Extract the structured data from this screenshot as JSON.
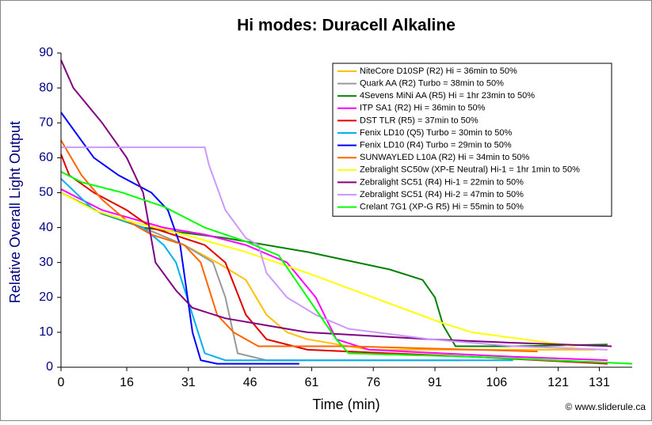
{
  "chart_data": {
    "type": "line",
    "title": "Hi modes: Duracell Alkaline",
    "x_label": "Time (min)",
    "y_label": "Relative Overall Light Output",
    "footer": "© www.sliderule.ca",
    "xlim": [
      0,
      139
    ],
    "ylim": [
      0,
      90
    ],
    "xticks": [
      0,
      16,
      31,
      46,
      61,
      76,
      91,
      106,
      121,
      131
    ],
    "yticks": [
      0,
      10,
      20,
      30,
      40,
      50,
      60,
      70,
      80,
      90
    ],
    "legend": "top-right",
    "series": [
      {
        "name": "NiteCore D10SP (R2) Hi = 36min to 50%",
        "color": "#ffc000",
        "x": [
          0,
          10,
          20,
          30,
          38,
          45,
          50,
          55,
          60,
          75,
          100,
          130
        ],
        "values": [
          50,
          44,
          40,
          35,
          30,
          25,
          15,
          10,
          8,
          5,
          5,
          5
        ]
      },
      {
        "name": "Quark AA (R2) Turbo = 38min to 50%",
        "color": "#999999",
        "x": [
          0,
          10,
          20,
          30,
          37,
          40,
          43,
          50,
          70,
          97
        ],
        "values": [
          50,
          44,
          40,
          35,
          30,
          20,
          4,
          2,
          2,
          2
        ]
      },
      {
        "name": "4Sevens MiNi AA (R5) Hi = 1hr 23min to 50%",
        "color": "#008000",
        "x": [
          0,
          10,
          20,
          40,
          60,
          80,
          88,
          91,
          93,
          96,
          110,
          133
        ],
        "values": [
          50,
          44,
          40,
          37,
          33,
          28,
          25,
          20,
          12,
          6,
          6,
          6.5
        ]
      },
      {
        "name": "ITP SA1 (R2) Hi = 36min to 50%",
        "color": "#ff00ff",
        "x": [
          0,
          10,
          25,
          35,
          45,
          55,
          62,
          67,
          75,
          110,
          133
        ],
        "values": [
          51,
          45,
          40,
          38,
          35,
          30,
          20,
          8,
          5,
          3,
          2
        ]
      },
      {
        "name": "DST TLR (R5) = 37min to 50%",
        "color": "#e00000",
        "x": [
          0,
          2,
          8,
          16,
          22,
          35,
          40,
          45,
          50,
          60,
          100,
          133
        ],
        "values": [
          61,
          55,
          50,
          45,
          40,
          35,
          30,
          15,
          8,
          5,
          3,
          1
        ]
      },
      {
        "name": "Fenix LD10 (Q5) Turbo = 30min to 50%",
        "color": "#00b0f0",
        "x": [
          0,
          8,
          20,
          25,
          28,
          32,
          35,
          40,
          110
        ],
        "values": [
          54,
          45,
          40,
          35,
          30,
          15,
          4,
          2,
          2
        ]
      },
      {
        "name": "Fenix LD10 (R4) Turbo = 29min to 50%",
        "color": "#0000ff",
        "x": [
          0,
          8,
          14,
          22,
          26,
          29,
          32,
          34,
          38,
          58
        ],
        "values": [
          73,
          60,
          55,
          50,
          45,
          35,
          10,
          2,
          1,
          1
        ]
      },
      {
        "name": "SUNWAYLED L10A (R2) Hi = 34min to 50%",
        "color": "#ff6600",
        "x": [
          0,
          5,
          10,
          16,
          22,
          30,
          34,
          38,
          42,
          48,
          70,
          116
        ],
        "values": [
          65,
          55,
          48,
          42,
          38,
          35,
          30,
          15,
          10,
          6,
          6,
          4.5
        ]
      },
      {
        "name": "Zebralight SC50w (XP-E Neutral) Hi-1 = 1hr 1min to 50%",
        "color": "#ffff00",
        "x": [
          0,
          8,
          16,
          30,
          45,
          60,
          76,
          92,
          100,
          125
        ],
        "values": [
          50,
          45,
          42,
          38,
          33,
          27,
          20,
          13,
          10,
          6
        ]
      },
      {
        "name": "Zebralight SC51 (R4) Hi-1 = 22min to 50%",
        "color": "#800080",
        "x": [
          0,
          3,
          10,
          16,
          20,
          23,
          28,
          32,
          40,
          50,
          60,
          90,
          110,
          134
        ],
        "values": [
          88,
          80,
          70,
          60,
          50,
          30,
          22,
          17,
          14,
          12,
          10,
          8,
          7,
          6
        ]
      },
      {
        "name": "Zebralight SC51 (R4) Hi-2 = 47min to 50%",
        "color": "#cc99ff",
        "x": [
          0,
          35,
          36,
          40,
          45,
          48,
          50,
          55,
          62,
          70,
          90,
          110,
          133
        ],
        "values": [
          63,
          63,
          58,
          45,
          37,
          35,
          27,
          20,
          15,
          11,
          8,
          6,
          5
        ]
      },
      {
        "name": "Crelant 7G1 (XP-G R5) Hi = 55min to 50%",
        "color": "#00ff00",
        "x": [
          0,
          5,
          15,
          20,
          25,
          35,
          45,
          53,
          60,
          67,
          70,
          100,
          120,
          139
        ],
        "values": [
          56,
          53,
          50,
          48,
          46,
          40,
          36,
          32,
          20,
          8,
          4,
          3,
          2,
          1
        ]
      }
    ]
  }
}
